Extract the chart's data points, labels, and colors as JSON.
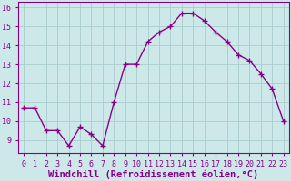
{
  "x": [
    0,
    1,
    2,
    3,
    4,
    5,
    6,
    7,
    8,
    9,
    10,
    11,
    12,
    13,
    14,
    15,
    16,
    17,
    18,
    19,
    20,
    21,
    22,
    23
  ],
  "y": [
    10.7,
    10.7,
    9.5,
    9.5,
    8.7,
    9.7,
    9.3,
    8.7,
    11.0,
    13.0,
    13.0,
    14.2,
    14.7,
    15.0,
    15.7,
    15.7,
    15.3,
    14.7,
    14.2,
    13.5,
    13.2,
    12.5,
    11.7,
    10.0
  ],
  "line_color": "#880088",
  "marker": "+",
  "marker_size": 4,
  "marker_lw": 1.0,
  "bg_color": "#cce8e8",
  "plot_bg_color": "#cce8e8",
  "grid_color": "#aacccc",
  "xlabel": "Windchill (Refroidissement éolien,°C)",
  "xlabel_color": "#880088",
  "xlabel_fontsize": 7.5,
  "xlim": [
    -0.5,
    23.5
  ],
  "ylim": [
    8.3,
    16.3
  ],
  "yticks": [
    9,
    10,
    11,
    12,
    13,
    14,
    15,
    16
  ],
  "xticks": [
    0,
    1,
    2,
    3,
    4,
    5,
    6,
    7,
    8,
    9,
    10,
    11,
    12,
    13,
    14,
    15,
    16,
    17,
    18,
    19,
    20,
    21,
    22,
    23
  ],
  "tick_fontsize": 6.0,
  "tick_color": "#880088",
  "line_width": 1.0,
  "spine_color": "#880088"
}
